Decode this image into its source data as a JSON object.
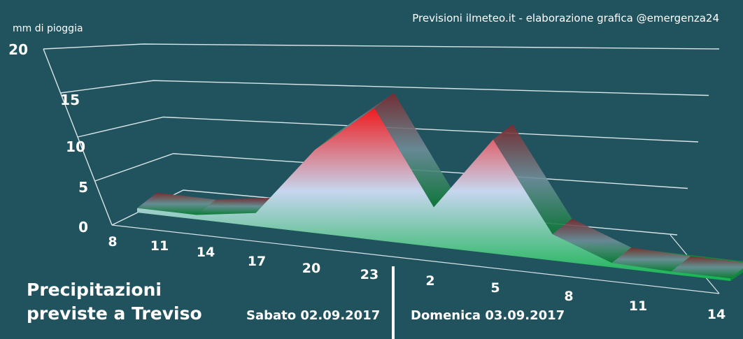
{
  "header": {
    "credit": "Previsioni ilmeteo.it - elaborazione grafica @emergenza24"
  },
  "chart_data": {
    "type": "area",
    "title": "Precipitazioni previste a Treviso",
    "title_lines": [
      "Precipitazioni",
      "previste a Treviso"
    ],
    "ylabel": "mm di pioggia",
    "xlabel": "",
    "ylim": [
      0,
      20
    ],
    "yticks": [
      0,
      5,
      10,
      15,
      20
    ],
    "categories": [
      "8",
      "11",
      "14",
      "17",
      "20",
      "23",
      "2",
      "5",
      "8",
      "11",
      "14"
    ],
    "values": [
      0.5,
      0.5,
      1.5,
      9.5,
      15,
      4.5,
      13,
      3,
      0.5,
      0.3,
      0.3
    ],
    "grid": true,
    "days": [
      "Sabato 02.09.2017",
      "Domenica 03.09.2017"
    ],
    "colors": {
      "background": "#21535f",
      "top": "#ee1b1f",
      "middle": "#c6d6ee",
      "bottom": "#14b350",
      "floor": "#0f8a3c"
    }
  }
}
